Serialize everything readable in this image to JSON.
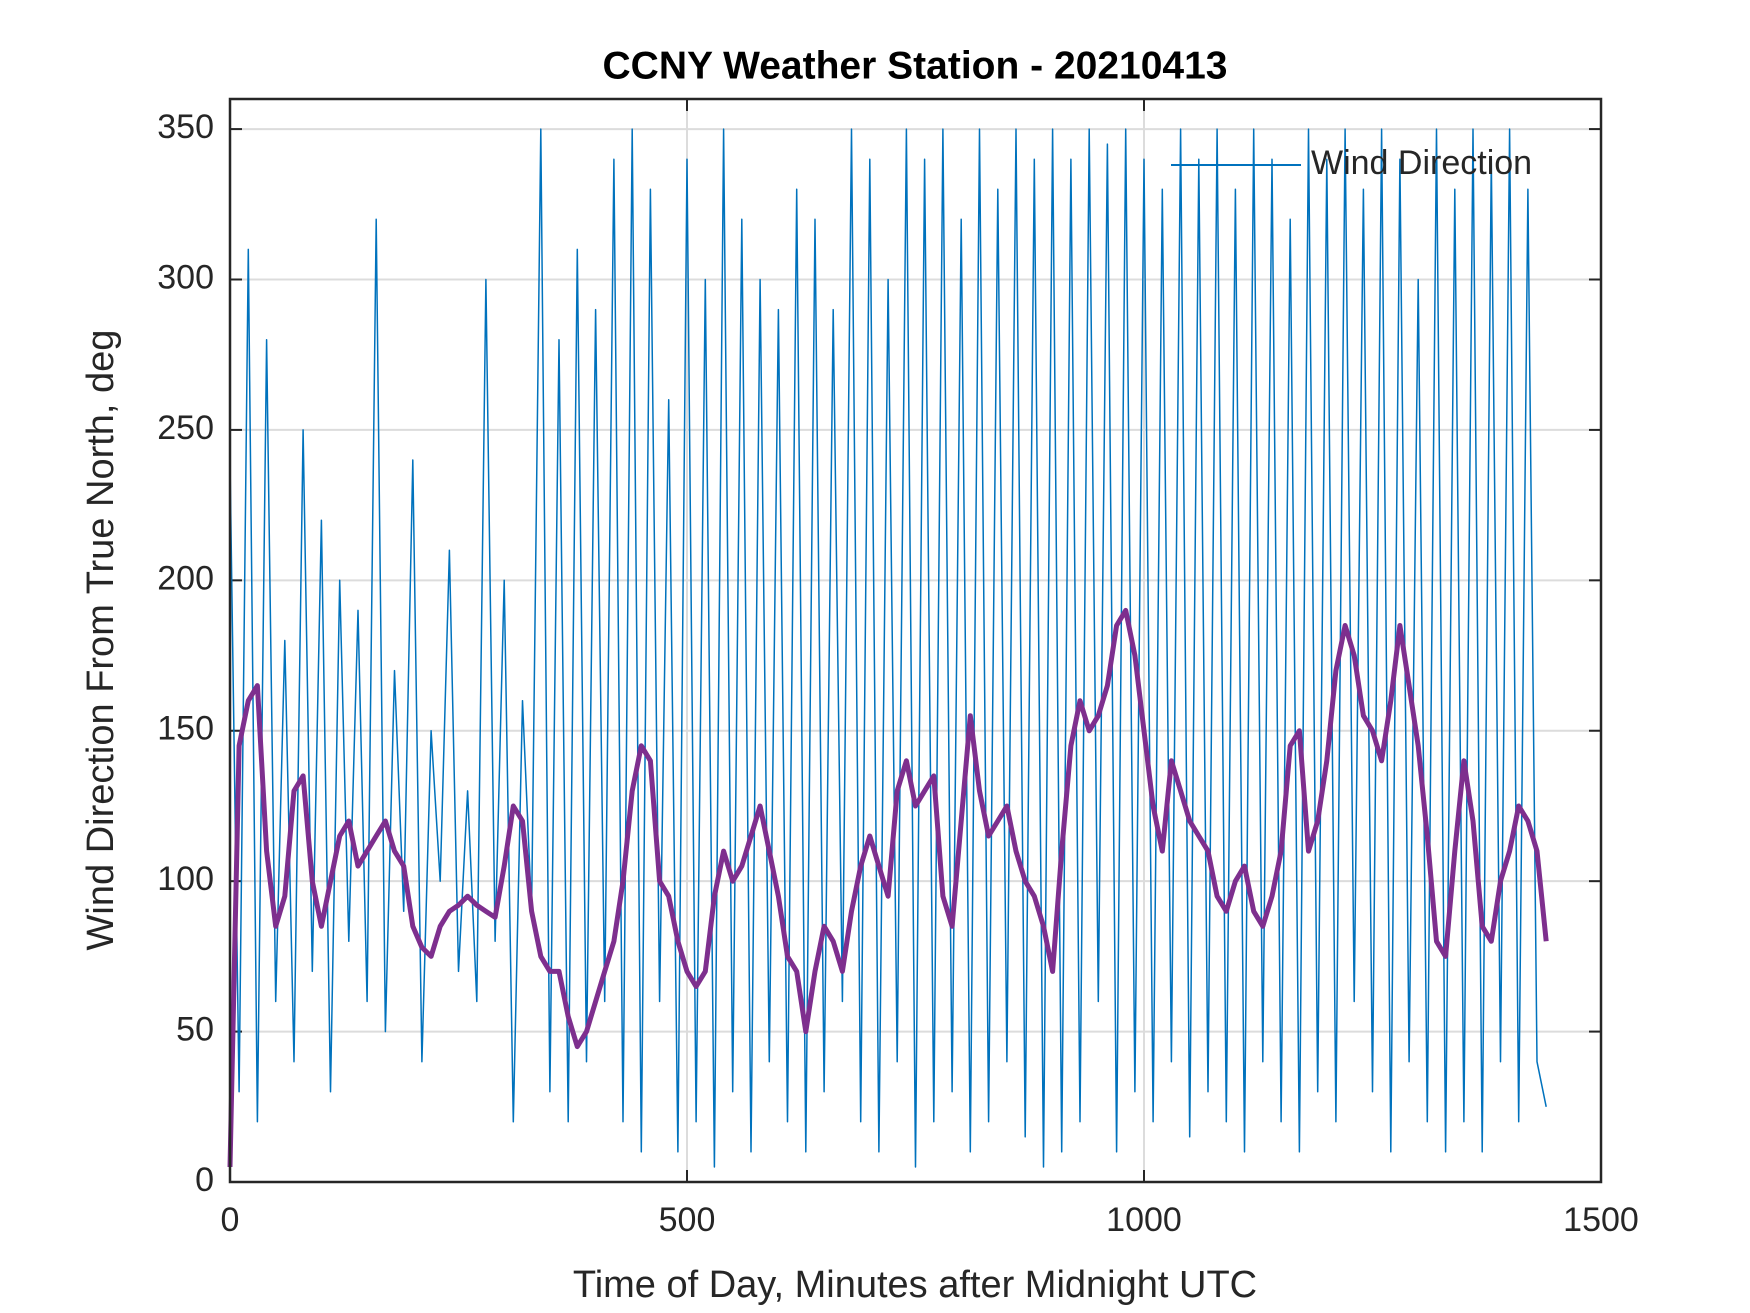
{
  "chart_data": {
    "type": "line",
    "title": "CCNY Weather Station - 20210413",
    "xlabel": "Time of Day, Minutes after Midnight UTC",
    "ylabel": "Wind Direction From True North, deg",
    "x": [
      0,
      10,
      20,
      30,
      40,
      50,
      60,
      70,
      80,
      90,
      100,
      110,
      120,
      130,
      140,
      150,
      160,
      170,
      180,
      190,
      200,
      210,
      220,
      230,
      240,
      250,
      260,
      270,
      280,
      290,
      300,
      310,
      320,
      330,
      340,
      350,
      360,
      370,
      380,
      390,
      400,
      410,
      420,
      430,
      440,
      450,
      460,
      470,
      480,
      490,
      500,
      510,
      520,
      530,
      540,
      550,
      560,
      570,
      580,
      590,
      600,
      610,
      620,
      630,
      640,
      650,
      660,
      670,
      680,
      690,
      700,
      710,
      720,
      730,
      740,
      750,
      760,
      770,
      780,
      790,
      800,
      810,
      820,
      830,
      840,
      850,
      860,
      870,
      880,
      890,
      900,
      910,
      920,
      930,
      940,
      950,
      960,
      970,
      980,
      990,
      1000,
      1010,
      1020,
      1030,
      1040,
      1050,
      1060,
      1070,
      1080,
      1090,
      1100,
      1110,
      1120,
      1130,
      1140,
      1150,
      1160,
      1170,
      1180,
      1190,
      1200,
      1210,
      1220,
      1230,
      1240,
      1250,
      1260,
      1270,
      1280,
      1290,
      1300,
      1310,
      1320,
      1330,
      1340,
      1350,
      1360,
      1370,
      1380,
      1390,
      1400,
      1410,
      1420,
      1430,
      1440
    ],
    "series": [
      {
        "name": "Wind Direction",
        "color": "#0072bd",
        "width": 1.5,
        "values": [
          240,
          30,
          310,
          20,
          280,
          60,
          180,
          40,
          250,
          70,
          220,
          30,
          200,
          80,
          190,
          60,
          320,
          50,
          170,
          90,
          240,
          40,
          150,
          100,
          210,
          70,
          130,
          60,
          300,
          80,
          200,
          20,
          160,
          90,
          350,
          30,
          280,
          20,
          310,
          40,
          290,
          60,
          340,
          20,
          350,
          10,
          330,
          60,
          260,
          10,
          340,
          20,
          300,
          5,
          350,
          30,
          320,
          10,
          300,
          40,
          290,
          20,
          330,
          10,
          320,
          30,
          290,
          60,
          350,
          20,
          340,
          10,
          300,
          40,
          350,
          5,
          340,
          20,
          350,
          30,
          320,
          10,
          350,
          20,
          330,
          40,
          350,
          15,
          340,
          5,
          350,
          10,
          340,
          20,
          350,
          60,
          345,
          10,
          350,
          30,
          340,
          20,
          330,
          40,
          350,
          15,
          340,
          30,
          350,
          20,
          330,
          10,
          350,
          40,
          340,
          20,
          320,
          10,
          350,
          30,
          340,
          20,
          350,
          60,
          330,
          30,
          350,
          10,
          340,
          40,
          300,
          20,
          350,
          10,
          330,
          20,
          350,
          10,
          340,
          40,
          350,
          20,
          330,
          40,
          25
        ]
      },
      {
        "color": "#7e2f8e",
        "width": 5,
        "values": [
          5,
          145,
          160,
          165,
          110,
          85,
          95,
          130,
          135,
          100,
          85,
          100,
          115,
          120,
          105,
          110,
          115,
          120,
          110,
          105,
          85,
          78,
          75,
          85,
          90,
          92,
          95,
          92,
          90,
          88,
          105,
          125,
          120,
          90,
          75,
          70,
          70,
          55,
          45,
          50,
          60,
          70,
          80,
          100,
          130,
          145,
          140,
          100,
          95,
          80,
          70,
          65,
          70,
          95,
          110,
          100,
          105,
          115,
          125,
          110,
          95,
          75,
          70,
          50,
          70,
          85,
          80,
          70,
          90,
          105,
          115,
          105,
          95,
          130,
          140,
          125,
          130,
          135,
          95,
          85,
          120,
          155,
          130,
          115,
          120,
          125,
          110,
          100,
          95,
          85,
          70,
          110,
          145,
          160,
          150,
          155,
          165,
          185,
          190,
          175,
          150,
          125,
          110,
          140,
          130,
          120,
          115,
          110,
          95,
          90,
          100,
          105,
          90,
          85,
          95,
          110,
          145,
          150,
          110,
          120,
          140,
          170,
          185,
          175,
          155,
          150,
          140,
          160,
          185,
          165,
          145,
          115,
          80,
          75,
          110,
          140,
          120,
          85,
          80,
          100,
          110,
          125,
          120,
          110,
          80
        ]
      }
    ],
    "xlim": [
      0,
      1500
    ],
    "xticks": [
      0,
      500,
      1000,
      1500
    ],
    "ylim": [
      0,
      360
    ],
    "yticks": [
      0,
      50,
      100,
      150,
      200,
      250,
      300,
      350
    ],
    "grid": true,
    "legend": "northeast"
  }
}
